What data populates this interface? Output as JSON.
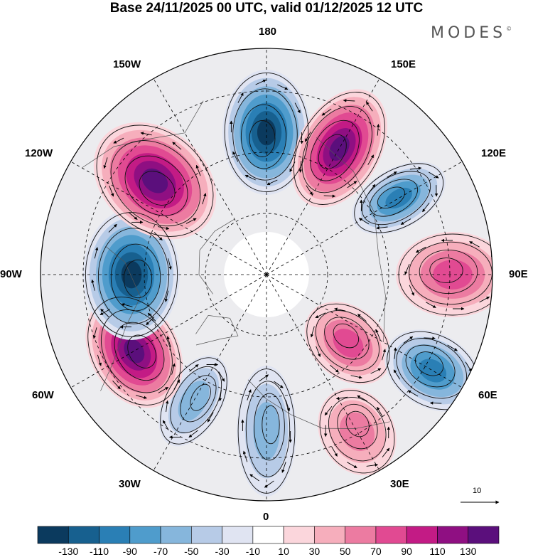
{
  "title": "Base 24/11/2025 00 UTC, valid 01/12/2025 12 UTC",
  "logo": "MODES",
  "logo_mark": "©",
  "longitude_labels": {
    "lon_180": "180",
    "lon_150w": "150W",
    "lon_150e": "150E",
    "lon_120w": "120W",
    "lon_120e": "120E",
    "lon_90w": "90W",
    "lon_90e": "90E",
    "lon_60w": "60W",
    "lon_60e": "60E",
    "lon_30w": "30W",
    "lon_30e": "30E",
    "lon_0": "0"
  },
  "vector_scale": "10",
  "colorbar": {
    "labels": [
      "-130",
      "-110",
      "-90",
      "-70",
      "-50",
      "-30",
      "-10",
      "10",
      "30",
      "50",
      "70",
      "90",
      "110",
      "130"
    ],
    "colors": [
      "#0b3a5e",
      "#17608f",
      "#2a7fb5",
      "#4f9ccc",
      "#86b6dc",
      "#b7cbe7",
      "#e0e4f2",
      "#ffffff",
      "#fbd6dc",
      "#f6aebc",
      "#ec7ba1",
      "#e14a92",
      "#c31b85",
      "#8f0f82",
      "#5b0f7c"
    ]
  },
  "anomalies": [
    {
      "label": "trough",
      "lon": 180,
      "value": -130
    },
    {
      "label": "ridge",
      "lon": 150,
      "value": 130
    },
    {
      "label": "trough",
      "lon": 120,
      "value": -90
    },
    {
      "label": "ridge",
      "lon": 90,
      "value": 70
    },
    {
      "label": "ridge",
      "lon": 50,
      "value": 70
    },
    {
      "label": "trough",
      "lon": 60,
      "value": -90
    },
    {
      "label": "ridge",
      "lon": 30,
      "value": 50
    },
    {
      "label": "trough",
      "lon": 0,
      "value": -50
    },
    {
      "label": "trough",
      "lon": -30,
      "value": -50
    },
    {
      "label": "ridge",
      "lon": -60,
      "value": 130
    },
    {
      "label": "trough",
      "lon": -90,
      "value": -130
    },
    {
      "label": "ridge",
      "lon": -130,
      "value": 130
    }
  ]
}
